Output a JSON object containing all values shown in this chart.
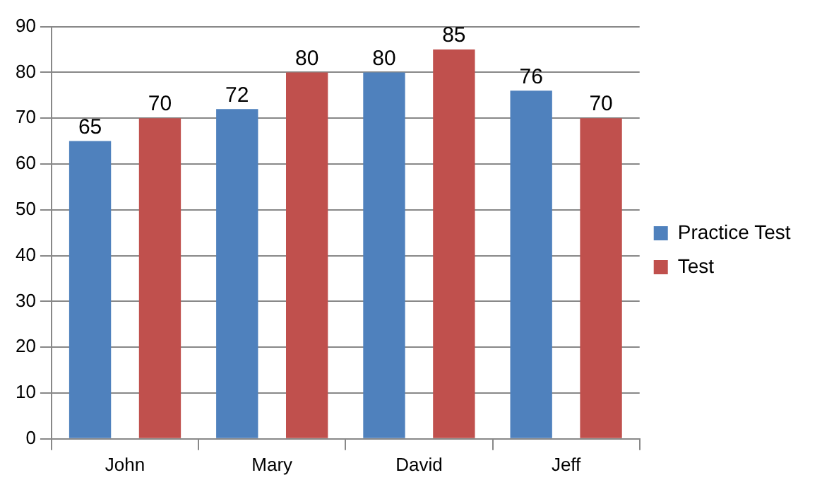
{
  "chart_data": {
    "type": "bar",
    "categories": [
      "John",
      "Mary",
      "David",
      "Jeff"
    ],
    "series": [
      {
        "name": "Practice Test",
        "color": "#4f81bd",
        "values": [
          65,
          72,
          80,
          76
        ]
      },
      {
        "name": "Test",
        "color": "#c0504d",
        "values": [
          70,
          80,
          85,
          70
        ]
      }
    ],
    "ylim": [
      0,
      90
    ],
    "yticks": [
      0,
      10,
      20,
      30,
      40,
      50,
      60,
      70,
      80,
      90
    ],
    "grid": "y",
    "legend": "right",
    "data_labels": true
  }
}
